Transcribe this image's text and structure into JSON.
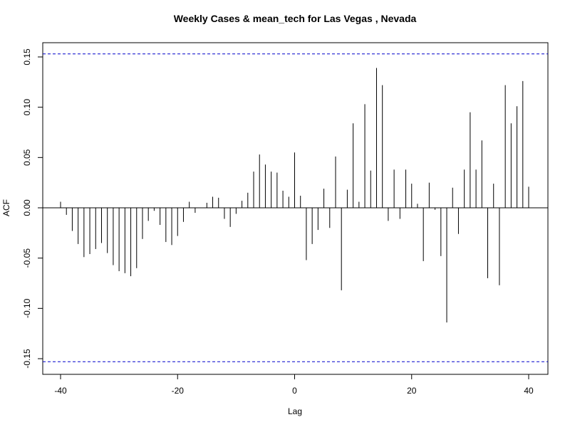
{
  "chart_data": {
    "type": "bar",
    "subtype": "acf-stem",
    "title": "Weekly Cases & mean_tech for Las Vegas , Nevada",
    "xlabel": "Lag",
    "ylabel": "ACF",
    "xlim": [
      -40,
      40
    ],
    "ylim": [
      -0.165,
      0.16
    ],
    "x_ticks": [
      -40,
      -20,
      0,
      20,
      40
    ],
    "x_tick_labels": [
      "-40",
      "-20",
      "0",
      "20",
      "40"
    ],
    "y_ticks": [
      -0.15,
      -0.1,
      -0.05,
      0.0,
      0.05,
      0.1,
      0.15
    ],
    "y_tick_labels": [
      "-0.15",
      "-0.10",
      "-0.05",
      "0.00",
      "0.05",
      "0.10",
      "0.15"
    ],
    "confidence_bound": 0.153,
    "grid": false,
    "colors": {
      "bars": "#000000",
      "confidence": "#0000cc",
      "zero_line": "#000000"
    },
    "lags": [
      -40,
      -39,
      -38,
      -37,
      -36,
      -35,
      -34,
      -33,
      -32,
      -31,
      -30,
      -29,
      -28,
      -27,
      -26,
      -25,
      -24,
      -23,
      -22,
      -21,
      -20,
      -19,
      -18,
      -17,
      -16,
      -15,
      -14,
      -13,
      -12,
      -11,
      -10,
      -9,
      -8,
      -7,
      -6,
      -5,
      -4,
      -3,
      -2,
      -1,
      0,
      1,
      2,
      3,
      4,
      5,
      6,
      7,
      8,
      9,
      10,
      11,
      12,
      13,
      14,
      15,
      16,
      17,
      18,
      19,
      20,
      21,
      22,
      23,
      24,
      25,
      26,
      27,
      28,
      29,
      30,
      31,
      32,
      33,
      34,
      35,
      36,
      37,
      38,
      39,
      40
    ],
    "values": [
      0.006,
      -0.007,
      -0.023,
      -0.036,
      -0.049,
      -0.046,
      -0.041,
      -0.035,
      -0.045,
      -0.057,
      -0.063,
      -0.065,
      -0.068,
      -0.06,
      -0.031,
      -0.013,
      -0.003,
      -0.017,
      -0.034,
      -0.037,
      -0.028,
      -0.014,
      0.006,
      -0.005,
      0.0,
      0.005,
      0.011,
      0.01,
      -0.011,
      -0.019,
      -0.006,
      0.007,
      0.015,
      0.036,
      0.053,
      0.043,
      0.036,
      0.035,
      0.017,
      0.011,
      0.055,
      0.012,
      -0.052,
      -0.036,
      -0.022,
      0.019,
      -0.02,
      0.051,
      -0.082,
      0.018,
      0.084,
      0.006,
      0.103,
      0.037,
      0.139,
      0.122,
      -0.013,
      0.038,
      -0.011,
      0.038,
      0.024,
      0.004,
      -0.053,
      0.025,
      -0.002,
      -0.048,
      -0.114,
      0.02,
      -0.026,
      0.038,
      0.095,
      0.038,
      0.067,
      -0.07,
      0.024,
      -0.077,
      0.122,
      0.084,
      0.101,
      0.126,
      0.021
    ]
  }
}
